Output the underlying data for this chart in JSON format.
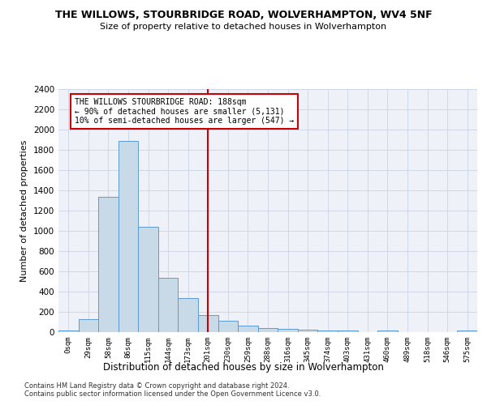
{
  "title1": "THE WILLOWS, STOURBRIDGE ROAD, WOLVERHAMPTON, WV4 5NF",
  "title2": "Size of property relative to detached houses in Wolverhampton",
  "xlabel": "Distribution of detached houses by size in Wolverhampton",
  "ylabel": "Number of detached properties",
  "bar_labels": [
    "0sqm",
    "29sqm",
    "58sqm",
    "86sqm",
    "115sqm",
    "144sqm",
    "173sqm",
    "201sqm",
    "230sqm",
    "259sqm",
    "288sqm",
    "316sqm",
    "345sqm",
    "374sqm",
    "403sqm",
    "431sqm",
    "460sqm",
    "489sqm",
    "518sqm",
    "546sqm",
    "575sqm"
  ],
  "bar_values": [
    15,
    125,
    1340,
    1890,
    1040,
    540,
    340,
    170,
    110,
    65,
    40,
    30,
    25,
    20,
    15,
    0,
    20,
    0,
    0,
    0,
    15
  ],
  "bar_color": "#c8d9e8",
  "bar_edge_color": "#5b9bd5",
  "vline_x": 7,
  "vline_color": "#cc0000",
  "ylim": [
    0,
    2400
  ],
  "yticks": [
    0,
    200,
    400,
    600,
    800,
    1000,
    1200,
    1400,
    1600,
    1800,
    2000,
    2200,
    2400
  ],
  "annotation_text": "THE WILLOWS STOURBRIDGE ROAD: 188sqm\n← 90% of detached houses are smaller (5,131)\n10% of semi-detached houses are larger (547) →",
  "annotation_box_color": "#ffffff",
  "annotation_box_edge": "#cc0000",
  "footnote1": "Contains HM Land Registry data © Crown copyright and database right 2024.",
  "footnote2": "Contains public sector information licensed under the Open Government Licence v3.0.",
  "grid_color": "#d0d8e8",
  "bg_color": "#eef2f8"
}
